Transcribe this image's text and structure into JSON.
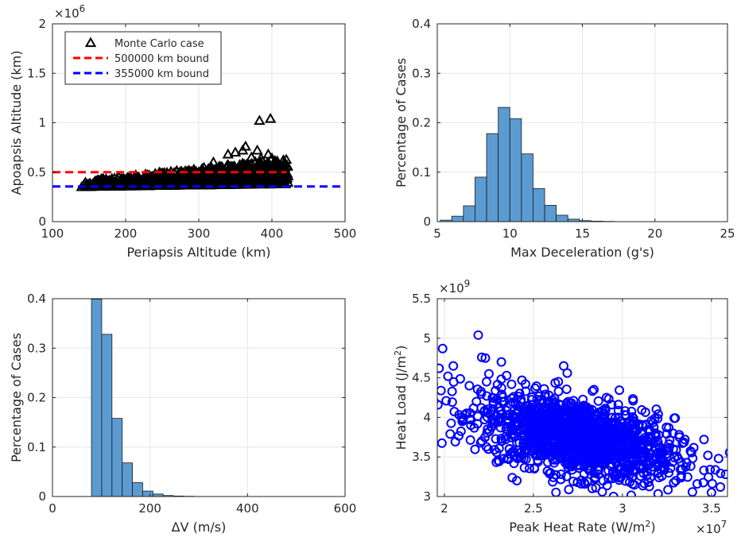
{
  "chart_data": [
    {
      "type": "scatter",
      "xlabel": "Periapsis Altitude (km)",
      "ylabel": "Apoapsis Altitude (km)",
      "xlim": [
        100,
        500
      ],
      "ylim": [
        0,
        2000000
      ],
      "xticks": [
        100,
        200,
        300,
        400,
        500
      ],
      "yticks": [
        0,
        500000,
        1000000,
        1500000,
        2000000
      ],
      "yticklabels": [
        "0",
        "0.5",
        "1",
        "1.5",
        "2"
      ],
      "y_exponent": "×10",
      "y_exponent_power": "6",
      "grid": true,
      "legend_position": "top-left",
      "legend": [
        {
          "label": "Monte Carlo case",
          "marker": "triangle",
          "color": "#000000"
        },
        {
          "label": "500000 km bound",
          "line": "dashed",
          "color": "#ff0000"
        },
        {
          "label": "355000 km bound",
          "line": "dashed",
          "color": "#0000ff"
        }
      ],
      "reference_lines": [
        {
          "y": 500000,
          "color": "#ff0000",
          "style": "dashed",
          "x_range": [
            100,
            420
          ]
        },
        {
          "y": 355000,
          "color": "#0000ff",
          "style": "dashed",
          "x_range": [
            100,
            500
          ]
        }
      ],
      "series": [
        {
          "name": "Monte Carlo case",
          "marker": "triangle",
          "color": "#000000",
          "cloud": {
            "x_range": [
              140,
              422
            ],
            "y_min": 350000,
            "y_max": 620000,
            "count": 900
          },
          "points": [
            {
              "x": 140,
              "y": 350000
            },
            {
              "x": 145,
              "y": 395000
            },
            {
              "x": 160,
              "y": 380000
            },
            {
              "x": 175,
              "y": 410000
            },
            {
              "x": 200,
              "y": 420000
            },
            {
              "x": 230,
              "y": 470000
            },
            {
              "x": 250,
              "y": 470000
            },
            {
              "x": 300,
              "y": 500000
            },
            {
              "x": 320,
              "y": 600000
            },
            {
              "x": 340,
              "y": 680000
            },
            {
              "x": 350,
              "y": 700000
            },
            {
              "x": 360,
              "y": 720000
            },
            {
              "x": 364,
              "y": 760000
            },
            {
              "x": 372,
              "y": 650000
            },
            {
              "x": 380,
              "y": 720000
            },
            {
              "x": 385,
              "y": 640000
            },
            {
              "x": 395,
              "y": 680000
            },
            {
              "x": 400,
              "y": 640000
            },
            {
              "x": 410,
              "y": 550000
            },
            {
              "x": 422,
              "y": 460000
            },
            {
              "x": 383,
              "y": 1020000
            },
            {
              "x": 398,
              "y": 1040000
            }
          ]
        }
      ]
    },
    {
      "type": "bar",
      "subtype": "histogram",
      "xlabel": "Max Deceleration (g's)",
      "ylabel": "Percentage of Cases",
      "xlim": [
        5,
        25
      ],
      "ylim": [
        0,
        0.4
      ],
      "xticks": [
        5,
        10,
        15,
        20,
        25
      ],
      "yticks": [
        0,
        0.1,
        0.2,
        0.3,
        0.4
      ],
      "grid": true,
      "bar_color": "#5b9bd1",
      "bin_width": 0.8,
      "bins_start": [
        5.2,
        6.0,
        6.8,
        7.6,
        8.4,
        9.2,
        10.0,
        10.8,
        11.6,
        12.4,
        13.2,
        14.0,
        14.8,
        15.6,
        16.4
      ],
      "values": [
        0.003,
        0.011,
        0.032,
        0.09,
        0.178,
        0.231,
        0.208,
        0.137,
        0.067,
        0.033,
        0.013,
        0.005,
        0.002,
        0.001,
        0.0005
      ]
    },
    {
      "type": "bar",
      "subtype": "histogram",
      "xlabel": "ΔV (m/s)",
      "ylabel": "Percentage of Cases",
      "xlim": [
        0,
        600
      ],
      "ylim": [
        0,
        0.4
      ],
      "xticks": [
        0,
        200,
        400,
        600
      ],
      "yticks": [
        0,
        0.1,
        0.2,
        0.3,
        0.4
      ],
      "grid": true,
      "bar_color": "#5b9bd1",
      "bin_width": 21,
      "bins_start": [
        80,
        101,
        122,
        143,
        164,
        185,
        206,
        227,
        248,
        269
      ],
      "values": [
        0.399,
        0.328,
        0.158,
        0.068,
        0.028,
        0.011,
        0.005,
        0.002,
        0.001,
        0.0005
      ]
    },
    {
      "type": "scatter",
      "xlabel": "Peak Heat Rate (W/m",
      "xlabel_sup": "2",
      "xlabel_end": ")",
      "ylabel": "Heat Load (J/m",
      "ylabel_sup": "2",
      "ylabel_end": ")",
      "xlim": [
        19600000,
        35900000
      ],
      "ylim": [
        3000000000,
        5500000000
      ],
      "xticks": [
        20000000,
        25000000,
        30000000,
        35000000
      ],
      "xticklabels": [
        "2",
        "2.5",
        "3",
        "3.5"
      ],
      "yticks": [
        3000000000,
        3500000000,
        4000000000,
        4500000000,
        5000000000,
        5500000000
      ],
      "yticklabels": [
        "3",
        "3.5",
        "4",
        "4.5",
        "5",
        "5.5"
      ],
      "x_exponent": "×10",
      "x_exponent_power": "7",
      "y_exponent": "×10",
      "y_exponent_power": "9",
      "grid": true,
      "series": [
        {
          "marker": "circle",
          "color": "#0000ff",
          "cloud": {
            "x_range": [
              21000000,
              34500000
            ],
            "count": 1400,
            "trend": "y decreases as x increases",
            "center_x": 27500000,
            "center_y": 3750000000
          },
          "points": [
            {
              "x": 19700000,
              "y": 4620000000
            },
            {
              "x": 19900000,
              "y": 4870000000
            },
            {
              "x": 20200000,
              "y": 4520000000
            },
            {
              "x": 20100000,
              "y": 4210000000
            },
            {
              "x": 20500000,
              "y": 4650000000
            },
            {
              "x": 21900000,
              "y": 5040000000
            },
            {
              "x": 22100000,
              "y": 4760000000
            },
            {
              "x": 22300000,
              "y": 4750000000
            },
            {
              "x": 21400000,
              "y": 4400000000
            },
            {
              "x": 21800000,
              "y": 4200000000
            },
            {
              "x": 22500000,
              "y": 4550000000
            },
            {
              "x": 21000000,
              "y": 3950000000
            },
            {
              "x": 23200000,
              "y": 4700000000
            },
            {
              "x": 26700000,
              "y": 4650000000
            },
            {
              "x": 26900000,
              "y": 4560000000
            },
            {
              "x": 28400000,
              "y": 4350000000
            },
            {
              "x": 30600000,
              "y": 4210000000
            },
            {
              "x": 29500000,
              "y": 3000000000
            },
            {
              "x": 32600000,
              "y": 3870000000
            },
            {
              "x": 34800000,
              "y": 3520000000
            },
            {
              "x": 35400000,
              "y": 3480000000
            },
            {
              "x": 35800000,
              "y": 3280000000
            },
            {
              "x": 35500000,
              "y": 3120000000
            },
            {
              "x": 35000000,
              "y": 3050000000
            },
            {
              "x": 34200000,
              "y": 3160000000
            },
            {
              "x": 33000000,
              "y": 3200000000
            }
          ]
        }
      ]
    }
  ]
}
